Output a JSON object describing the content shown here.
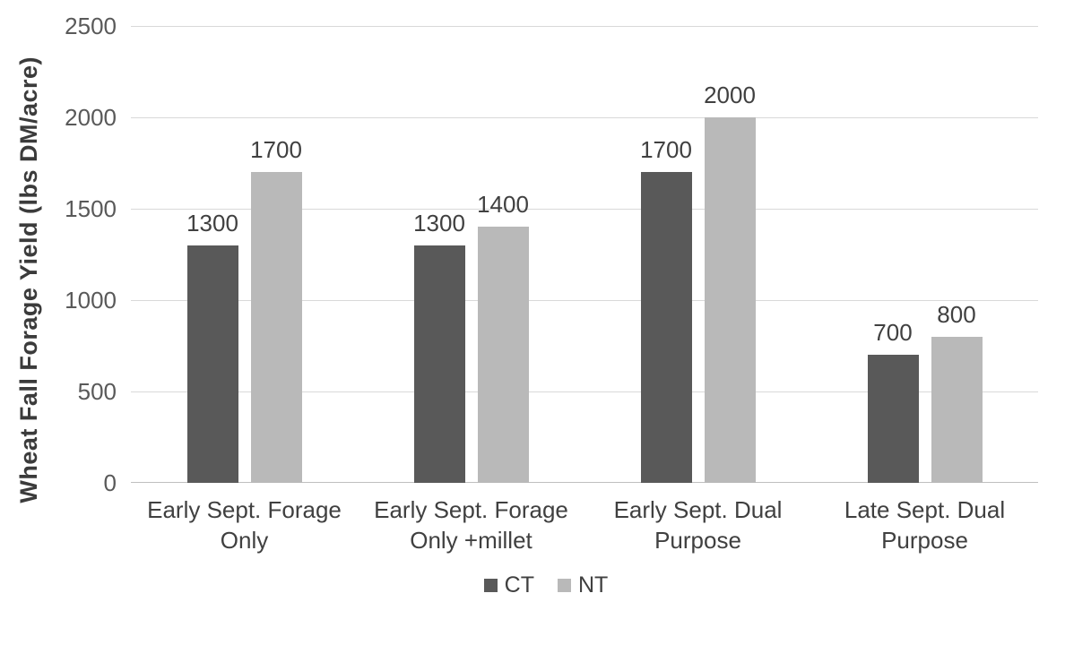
{
  "chart_data": {
    "type": "bar",
    "title": "",
    "xlabel": "",
    "ylabel": "Wheat Fall Forage Yield (lbs DM/acre)",
    "ylim": [
      0,
      2500
    ],
    "yticks": [
      0,
      500,
      1000,
      1500,
      2000,
      2500
    ],
    "grid": true,
    "data_labels": true,
    "legend_position": "bottom",
    "categories": [
      "Early Sept. Forage Only",
      "Early Sept. Forage Only +millet",
      "Early Sept. Dual Purpose",
      "Late Sept. Dual Purpose"
    ],
    "series": [
      {
        "name": "CT",
        "color": "#595959",
        "values": [
          1300,
          1300,
          1700,
          700
        ]
      },
      {
        "name": "NT",
        "color": "#b9b9b9",
        "values": [
          1700,
          1400,
          2000,
          800
        ]
      }
    ]
  },
  "style": {
    "background": "#ffffff",
    "gridline_color": "#d9d9d9",
    "axis_line_color": "#bfbfbf",
    "tick_label_color": "#595959",
    "data_label_color": "#404040",
    "category_label_color": "#404040",
    "axis_title_color": "#3b3b3b",
    "legend_label_color": "#404040"
  }
}
